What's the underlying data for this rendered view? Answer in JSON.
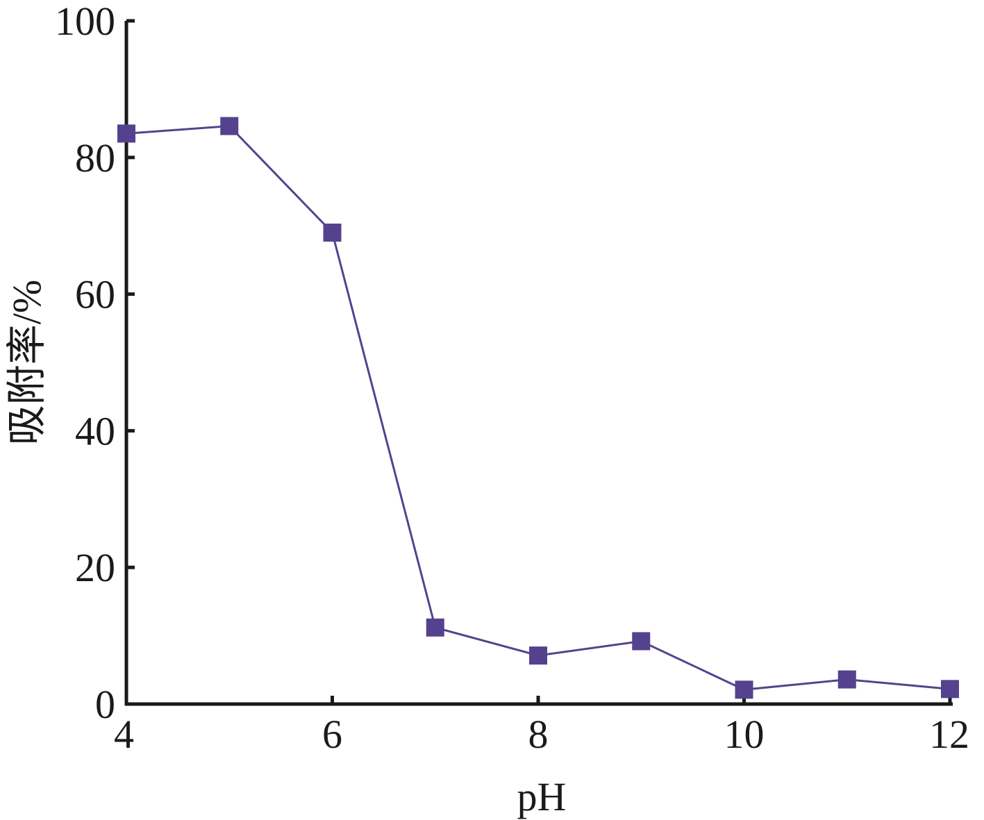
{
  "chart_data": {
    "type": "line",
    "title": "",
    "xlabel": "pH",
    "ylabel": "吸附率/%",
    "xlim": [
      4,
      12
    ],
    "ylim": [
      0,
      100
    ],
    "xticks": [
      4,
      6,
      8,
      10,
      12
    ],
    "yticks": [
      0,
      20,
      40,
      60,
      80,
      100
    ],
    "grid": false,
    "legend": "none",
    "series": [
      {
        "color": "#54428e",
        "marker": "square",
        "x": [
          4,
          5,
          6,
          7,
          8,
          9,
          10,
          11,
          12
        ],
        "y": [
          83.5,
          84.6,
          69.0,
          11.2,
          7.1,
          9.2,
          2.1,
          3.6,
          2.2
        ]
      }
    ]
  }
}
